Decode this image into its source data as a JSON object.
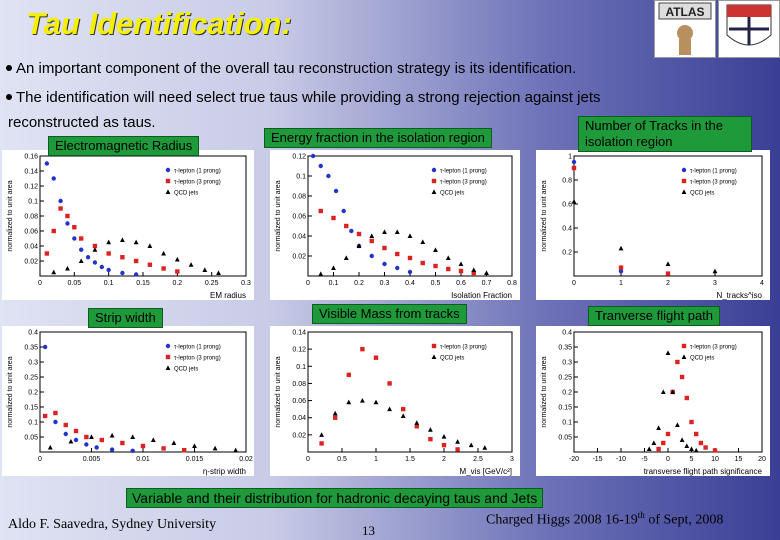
{
  "title": "Tau Identification:",
  "bullets": [
    "An important component of the overall tau reconstruction strategy is its identification.",
    "The identification will need select true taus while providing a strong rejection against jets"
  ],
  "bullet_continuation": "reconstructed as taus.",
  "labels": {
    "em_radius": "Electromagnetic Radius",
    "energy_fraction": "Energy fraction in the isolation region",
    "num_tracks": "Number of Tracks in the isolation region",
    "strip_width": "Strip width",
    "visible_mass": "Visible Mass from tracks",
    "flight_path": "Tranverse flight path"
  },
  "caption": "Variable and their distribution for hadronic decaying taus and Jets",
  "footer": {
    "author": "Aldo F. Saavedra, Sydney University",
    "page": "13",
    "conference_prefix": "Charged Higgs 2008",
    "conference_dates": "16-19",
    "conference_sup": "th",
    "conference_suffix": " of Sept, 2008"
  },
  "logos": {
    "left": "ATLAS",
    "right": "University crest"
  },
  "colors": {
    "title": "#f5f000",
    "label_bg": "#1f9a3a",
    "tau1": "#2233cc",
    "tau3": "#dd2222",
    "qcd": "#000000"
  },
  "chart_data": [
    {
      "type": "scatter",
      "ylabel": "normalized to unit area",
      "xlabel": "EM radius",
      "xlim": [
        0,
        0.3
      ],
      "ylim": [
        0,
        0.16
      ],
      "xticks": [
        "0",
        "0.05",
        "0.1",
        "0.15",
        "0.2",
        "0.25",
        "0.3"
      ],
      "yticks": [
        "0.02",
        "0.04",
        "0.06",
        "0.08",
        "0.1",
        "0.12",
        "0.14",
        "0.16"
      ],
      "legend": [
        "τ-lepton (1 prong)",
        "τ-lepton (3 prong)",
        "QCD jets"
      ],
      "series": [
        {
          "name": "τ-lepton (1 prong)",
          "x": [
            0.01,
            0.02,
            0.03,
            0.04,
            0.05,
            0.06,
            0.07,
            0.08,
            0.09,
            0.1,
            0.12,
            0.14
          ],
          "y": [
            0.15,
            0.13,
            0.1,
            0.07,
            0.05,
            0.035,
            0.025,
            0.018,
            0.012,
            0.008,
            0.004,
            0.002
          ]
        },
        {
          "name": "τ-lepton (3 prong)",
          "x": [
            0.01,
            0.02,
            0.03,
            0.04,
            0.05,
            0.06,
            0.08,
            0.1,
            0.12,
            0.14,
            0.16,
            0.18,
            0.2
          ],
          "y": [
            0.03,
            0.06,
            0.09,
            0.08,
            0.065,
            0.05,
            0.04,
            0.03,
            0.025,
            0.02,
            0.015,
            0.01,
            0.006
          ]
        },
        {
          "name": "QCD jets",
          "x": [
            0.02,
            0.04,
            0.06,
            0.08,
            0.1,
            0.12,
            0.14,
            0.16,
            0.18,
            0.2,
            0.22,
            0.24,
            0.26
          ],
          "y": [
            0.005,
            0.01,
            0.02,
            0.035,
            0.045,
            0.048,
            0.045,
            0.04,
            0.03,
            0.022,
            0.015,
            0.008,
            0.004
          ]
        }
      ]
    },
    {
      "type": "scatter",
      "ylabel": "normalized to unit area",
      "xlabel": "Isolation Fraction",
      "xlim": [
        0,
        0.8
      ],
      "ylim": [
        0,
        0.12
      ],
      "xticks": [
        "0",
        "0.1",
        "0.2",
        "0.3",
        "0.4",
        "0.5",
        "0.6",
        "0.7",
        "0.8"
      ],
      "yticks": [
        "0.02",
        "0.04",
        "0.06",
        "0.08",
        "0.1",
        "0.12"
      ],
      "legend": [
        "τ-lepton (1 prong)",
        "τ-lepton (3 prong)",
        "QCD jets"
      ],
      "series": [
        {
          "name": "τ-lepton (1 prong)",
          "x": [
            0.02,
            0.05,
            0.08,
            0.11,
            0.14,
            0.17,
            0.2,
            0.25,
            0.3,
            0.35,
            0.4
          ],
          "y": [
            0.12,
            0.11,
            0.1,
            0.085,
            0.065,
            0.045,
            0.03,
            0.02,
            0.012,
            0.008,
            0.004
          ]
        },
        {
          "name": "τ-lepton (3 prong)",
          "x": [
            0.05,
            0.1,
            0.15,
            0.2,
            0.25,
            0.3,
            0.35,
            0.4,
            0.45,
            0.5,
            0.55,
            0.6,
            0.65
          ],
          "y": [
            0.065,
            0.058,
            0.05,
            0.042,
            0.035,
            0.028,
            0.022,
            0.018,
            0.013,
            0.01,
            0.007,
            0.005,
            0.003
          ]
        },
        {
          "name": "QCD jets",
          "x": [
            0.05,
            0.1,
            0.15,
            0.2,
            0.25,
            0.3,
            0.35,
            0.4,
            0.45,
            0.5,
            0.55,
            0.6,
            0.65,
            0.7
          ],
          "y": [
            0.002,
            0.008,
            0.018,
            0.03,
            0.04,
            0.044,
            0.044,
            0.04,
            0.034,
            0.026,
            0.018,
            0.012,
            0.006,
            0.003
          ]
        }
      ]
    },
    {
      "type": "scatter",
      "ylabel": "normalized to unit area",
      "xlabel": "N_tracks^iso",
      "xlim": [
        0,
        4
      ],
      "ylim": [
        0,
        1
      ],
      "xticks": [
        "0",
        "1",
        "2",
        "3",
        "4"
      ],
      "yticks": [
        "0.2",
        "0.4",
        "0.6",
        "0.8",
        "1"
      ],
      "legend": [
        "τ-lepton (1 prong)",
        "τ-lepton (3 prong)",
        "QCD jets"
      ],
      "series": [
        {
          "name": "τ-lepton (1 prong)",
          "x": [
            0,
            1
          ],
          "y": [
            0.95,
            0.04
          ]
        },
        {
          "name": "τ-lepton (3 prong)",
          "x": [
            0,
            1,
            2
          ],
          "y": [
            0.9,
            0.07,
            0.02
          ]
        },
        {
          "name": "QCD jets",
          "x": [
            0,
            1,
            2,
            3
          ],
          "y": [
            0.62,
            0.23,
            0.1,
            0.04
          ]
        }
      ]
    },
    {
      "type": "scatter",
      "ylabel": "normalized to unit area",
      "xlabel": "η-strip width",
      "xlim": [
        0,
        0.02
      ],
      "ylim": [
        0,
        0.4
      ],
      "xticks": [
        "0",
        "0.005",
        "0.01",
        "0.015",
        "0.02"
      ],
      "yticks": [
        "0.05",
        "0.1",
        "0.15",
        "0.2",
        "0.25",
        "0.3",
        "0.35",
        "0.4"
      ],
      "legend": [
        "τ-lepton (1 prong)",
        "τ-lepton (3 prong)",
        "QCD jets"
      ],
      "series": [
        {
          "name": "τ-lepton (1 prong)",
          "x": [
            0.0005,
            0.0015,
            0.0025,
            0.0035,
            0.0045,
            0.0055,
            0.007,
            0.009
          ],
          "y": [
            0.35,
            0.1,
            0.06,
            0.04,
            0.025,
            0.015,
            0.008,
            0.004
          ]
        },
        {
          "name": "τ-lepton (3 prong)",
          "x": [
            0.0005,
            0.0015,
            0.0025,
            0.0035,
            0.0045,
            0.006,
            0.008,
            0.01,
            0.012,
            0.014
          ],
          "y": [
            0.12,
            0.13,
            0.09,
            0.07,
            0.05,
            0.04,
            0.03,
            0.02,
            0.012,
            0.006
          ]
        },
        {
          "name": "QCD jets",
          "x": [
            0.001,
            0.003,
            0.005,
            0.007,
            0.009,
            0.011,
            0.013,
            0.015,
            0.017,
            0.019
          ],
          "y": [
            0.015,
            0.035,
            0.05,
            0.055,
            0.05,
            0.04,
            0.03,
            0.02,
            0.012,
            0.006
          ]
        }
      ]
    },
    {
      "type": "scatter",
      "ylabel": "normalized to unit area",
      "xlabel": "M_vis [GeV/c²]",
      "xlim": [
        0,
        3
      ],
      "ylim": [
        0,
        0.14
      ],
      "xticks": [
        "0",
        "0.5",
        "1",
        "1.5",
        "2",
        "2.5",
        "3"
      ],
      "yticks": [
        "0.02",
        "0.04",
        "0.06",
        "0.08",
        "0.1",
        "0.12",
        "0.14"
      ],
      "legend": [
        "τ-lepton (3 prong)",
        "QCD jets"
      ],
      "series": [
        {
          "name": "τ-lepton (3 prong)",
          "x": [
            0.2,
            0.4,
            0.6,
            0.8,
            1.0,
            1.2,
            1.4,
            1.6,
            1.8,
            2.0,
            2.2
          ],
          "y": [
            0.01,
            0.04,
            0.09,
            0.12,
            0.11,
            0.08,
            0.05,
            0.03,
            0.015,
            0.008,
            0.003
          ]
        },
        {
          "name": "QCD jets",
          "x": [
            0.2,
            0.4,
            0.6,
            0.8,
            1.0,
            1.2,
            1.4,
            1.6,
            1.8,
            2.0,
            2.2,
            2.4,
            2.6
          ],
          "y": [
            0.02,
            0.045,
            0.058,
            0.06,
            0.058,
            0.05,
            0.042,
            0.034,
            0.026,
            0.018,
            0.012,
            0.008,
            0.005
          ]
        }
      ]
    },
    {
      "type": "scatter",
      "ylabel": "normalized to unit area",
      "xlabel": "transverse flight path significance",
      "xlim": [
        -20,
        20
      ],
      "ylim": [
        0,
        0.4
      ],
      "xticks": [
        "-20",
        "-15",
        "-10",
        "-5",
        "0",
        "5",
        "10",
        "15",
        "20"
      ],
      "yticks": [
        "0.05",
        "0.1",
        "0.15",
        "0.2",
        "0.25",
        "0.3",
        "0.35",
        "0.4"
      ],
      "legend": [
        "τ-lepton (3 prong)",
        "QCD jets"
      ],
      "series": [
        {
          "name": "τ-lepton (3 prong)",
          "x": [
            -2,
            -1,
            0,
            1,
            2,
            3,
            4,
            5,
            6,
            7,
            8,
            10
          ],
          "y": [
            0.01,
            0.03,
            0.06,
            0.2,
            0.3,
            0.25,
            0.18,
            0.1,
            0.06,
            0.03,
            0.015,
            0.005
          ]
        },
        {
          "name": "QCD jets",
          "x": [
            -4,
            -3,
            -2,
            -1,
            0,
            1,
            2,
            3,
            4,
            5,
            6
          ],
          "y": [
            0.01,
            0.03,
            0.08,
            0.2,
            0.33,
            0.2,
            0.09,
            0.04,
            0.02,
            0.01,
            0.005
          ]
        }
      ]
    }
  ]
}
